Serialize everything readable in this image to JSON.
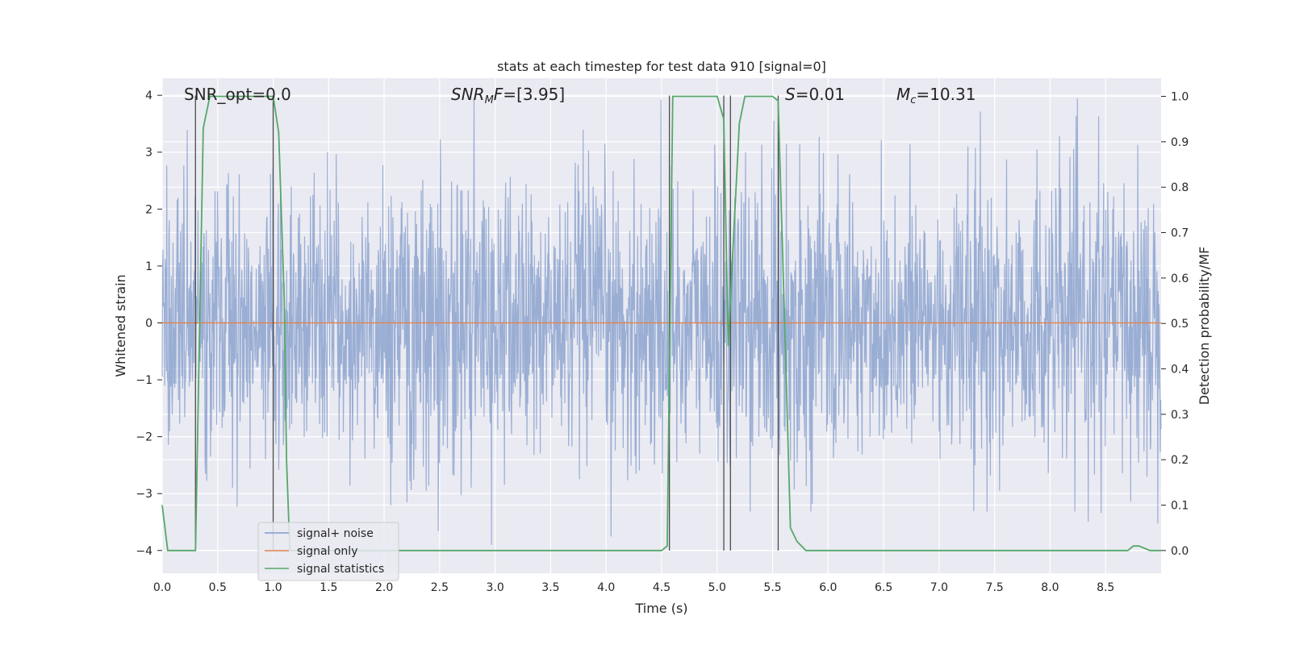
{
  "chart_data": {
    "type": "line",
    "title": "stats at each timestep for test data 910 [signal=0]",
    "xlabel": "Time (s)",
    "ylabel_left": "Whitened strain",
    "ylabel_right": "Detection probability/MF",
    "xlim": [
      0.0,
      9.0
    ],
    "ylim_left": [
      -4.4,
      4.3
    ],
    "ylim_right": [
      -0.05,
      1.04
    ],
    "xticks": [
      "0.0",
      "0.5",
      "1.0",
      "1.5",
      "2.0",
      "2.5",
      "3.0",
      "3.5",
      "4.0",
      "4.5",
      "5.0",
      "5.5",
      "6.0",
      "6.5",
      "7.0",
      "7.5",
      "8.0",
      "8.5"
    ],
    "xtick_values": [
      0.0,
      0.5,
      1.0,
      1.5,
      2.0,
      2.5,
      3.0,
      3.5,
      4.0,
      4.5,
      5.0,
      5.5,
      6.0,
      6.5,
      7.0,
      7.5,
      8.0,
      8.5
    ],
    "yticks_left": [
      "−4",
      "−3",
      "−2",
      "−1",
      "0",
      "1",
      "2",
      "3",
      "4"
    ],
    "ytick_values_left": [
      -4,
      -3,
      -2,
      -1,
      0,
      1,
      2,
      3,
      4
    ],
    "yticks_right": [
      "0.0",
      "0.1",
      "0.2",
      "0.3",
      "0.4",
      "0.5",
      "0.6",
      "0.7",
      "0.8",
      "0.9",
      "1.0"
    ],
    "ytick_values_right": [
      0.0,
      0.1,
      0.2,
      0.3,
      0.4,
      0.5,
      0.6,
      0.7,
      0.8,
      0.9,
      1.0
    ],
    "grid": true,
    "legend_placement": "lower-left",
    "annotations": [
      {
        "prefix": "SNR_opt=",
        "value": "0.0",
        "x": 0.2
      },
      {
        "prefix": "SNR_MF=",
        "value": "[3.95]",
        "x": 2.6
      },
      {
        "prefix": "S=",
        "value": "0.01",
        "x": 5.6
      },
      {
        "prefix": "M_c=",
        "value": "10.31",
        "x": 6.6
      }
    ],
    "series": [
      {
        "name": "signal+ noise",
        "axis": "left",
        "color": "#7f99c9",
        "description_of_data": "whitened noise, approx. Gaussian; envelope roughly ±2.3 with spikes to ±3.9",
        "y_envelope": [
          -3.9,
          3.95
        ]
      },
      {
        "name": "signal only",
        "axis": "left",
        "color": "#dd8452",
        "x": [
          0.0,
          9.0
        ],
        "y": [
          0.0,
          0.0
        ]
      },
      {
        "name": "signal statistics",
        "axis": "right",
        "color": "#55a868",
        "x": [
          0.0,
          0.05,
          0.15,
          0.25,
          0.3,
          0.37,
          0.43,
          0.5,
          0.6,
          0.7,
          0.8,
          0.9,
          1.0,
          1.05,
          1.1,
          1.12,
          1.15,
          1.3,
          2.0,
          3.0,
          4.0,
          4.5,
          4.55,
          4.6,
          4.7,
          4.8,
          4.9,
          5.0,
          5.06,
          5.1,
          5.15,
          5.2,
          5.25,
          5.35,
          5.45,
          5.5,
          5.55,
          5.62,
          5.66,
          5.72,
          5.8,
          5.88,
          6.0,
          7.0,
          8.0,
          8.5,
          8.7,
          8.75,
          8.8,
          8.9,
          9.0
        ],
        "y": [
          0.1,
          0.0,
          0.0,
          0.0,
          0.0,
          0.93,
          1.0,
          1.0,
          1.0,
          1.0,
          1.0,
          1.0,
          1.0,
          0.92,
          0.55,
          0.2,
          0.0,
          0.0,
          0.0,
          0.0,
          0.0,
          0.0,
          0.01,
          1.0,
          1.0,
          1.0,
          1.0,
          1.0,
          0.95,
          0.45,
          0.7,
          0.94,
          1.0,
          1.0,
          1.0,
          1.0,
          0.99,
          0.4,
          0.05,
          0.02,
          0.0,
          0.0,
          0.0,
          0.0,
          0.0,
          0.0,
          0.0,
          0.01,
          0.01,
          0.0,
          0.0
        ]
      }
    ],
    "vertical_markers": [
      0.3,
      1.0,
      4.57,
      5.06,
      5.12,
      5.55
    ]
  }
}
